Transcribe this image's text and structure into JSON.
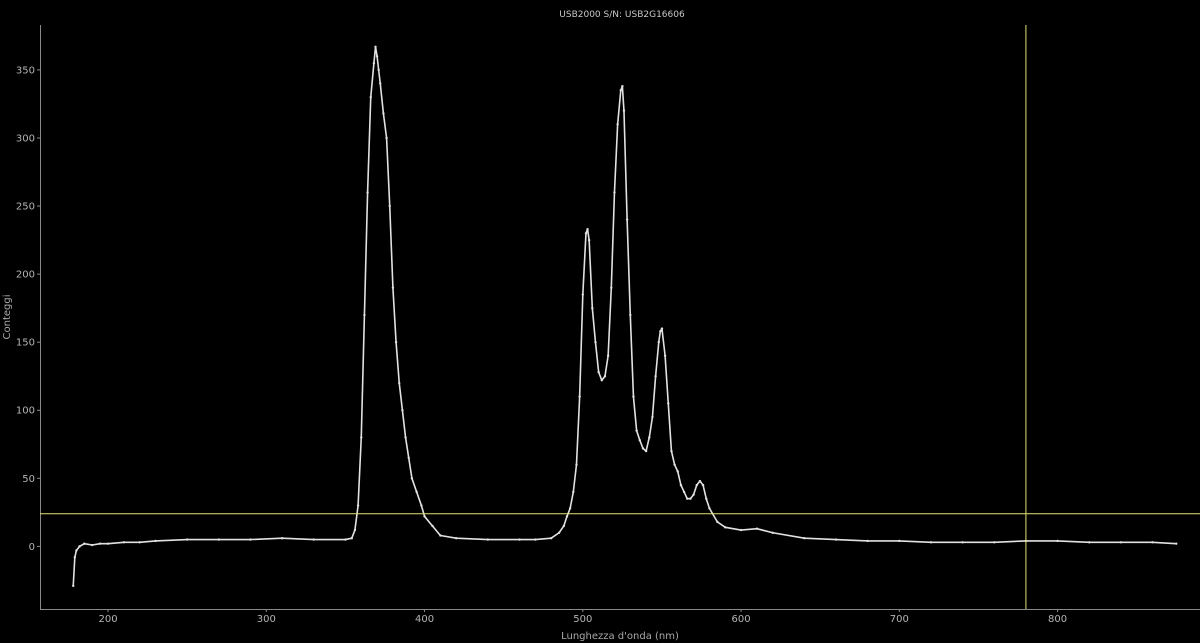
{
  "chart_data": {
    "type": "line",
    "title": "USB2000 S/N: USB2G16606",
    "xlabel": "Lunghezza d'onda (nm)",
    "ylabel": "Conteggi",
    "xlim": [
      157,
      890
    ],
    "ylim": [
      -46,
      383
    ],
    "xticks": [
      200,
      300,
      400,
      500,
      600,
      700,
      800
    ],
    "yticks": [
      0,
      50,
      100,
      150,
      200,
      250,
      300,
      350
    ],
    "grid": false,
    "crosshair": {
      "x": 780,
      "y": 24
    },
    "colors": {
      "background": "#000000",
      "series": "#e2e2e2",
      "crosshair": "#e6e273",
      "axis": "#8a8a8a"
    },
    "series": [
      {
        "x": [
          178,
          179,
          180,
          182,
          185,
          190,
          195,
          200,
          210,
          220,
          230,
          250,
          270,
          290,
          310,
          330,
          350,
          354,
          356,
          358,
          360,
          362,
          364,
          366,
          368,
          369,
          370,
          371,
          372,
          374,
          376,
          378,
          380,
          382,
          384,
          386,
          388,
          390,
          392,
          395,
          398,
          400,
          405,
          410,
          420,
          440,
          460,
          470,
          480,
          485,
          488,
          490,
          492,
          494,
          496,
          498,
          500,
          502,
          503,
          504,
          506,
          508,
          510,
          512,
          514,
          516,
          518,
          520,
          522,
          524,
          525,
          526,
          528,
          530,
          532,
          534,
          536,
          538,
          540,
          542,
          544,
          546,
          548,
          549,
          550,
          552,
          554,
          556,
          558,
          560,
          562,
          564,
          566,
          568,
          570,
          572,
          574,
          576,
          578,
          580,
          585,
          590,
          600,
          610,
          620,
          640,
          660,
          680,
          700,
          720,
          740,
          760,
          780,
          800,
          820,
          840,
          860,
          875
        ],
        "y": [
          -29,
          -8,
          -3,
          0,
          2,
          1,
          2,
          2,
          3,
          3,
          4,
          5,
          5,
          5,
          6,
          5,
          5,
          6,
          12,
          30,
          80,
          170,
          260,
          330,
          355,
          367,
          360,
          350,
          340,
          318,
          300,
          250,
          190,
          150,
          120,
          100,
          80,
          65,
          50,
          40,
          30,
          22,
          15,
          8,
          6,
          5,
          5,
          5,
          6,
          10,
          15,
          22,
          28,
          40,
          60,
          110,
          185,
          230,
          233,
          225,
          175,
          150,
          128,
          122,
          125,
          140,
          190,
          260,
          310,
          335,
          338,
          320,
          240,
          170,
          110,
          85,
          78,
          72,
          70,
          80,
          95,
          125,
          150,
          158,
          160,
          140,
          105,
          70,
          60,
          55,
          45,
          40,
          35,
          35,
          38,
          45,
          48,
          45,
          35,
          28,
          18,
          14,
          12,
          13,
          10,
          6,
          5,
          4,
          4,
          3,
          3,
          3,
          4,
          4,
          3,
          3,
          3,
          2
        ]
      }
    ]
  }
}
